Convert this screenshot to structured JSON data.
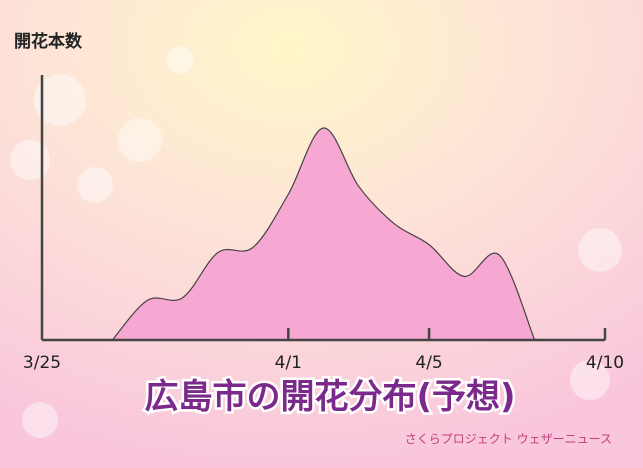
{
  "chart_data": {
    "type": "area",
    "title": "広島市の開花分布(予想)",
    "y_label": "開花本数",
    "footer": "さくらプロジェクト ウェザーニュース",
    "categories": [
      "3/25",
      null,
      null,
      null,
      null,
      null,
      null,
      "4/1",
      null,
      null,
      null,
      "4/5",
      null,
      null,
      null,
      null,
      "4/10"
    ],
    "values": [
      null,
      null,
      0,
      15,
      16,
      33,
      35,
      55,
      80,
      58,
      44,
      36,
      24,
      32,
      0,
      null,
      null
    ],
    "color": "#f7a8d2",
    "ylim": [
      0,
      100
    ]
  }
}
